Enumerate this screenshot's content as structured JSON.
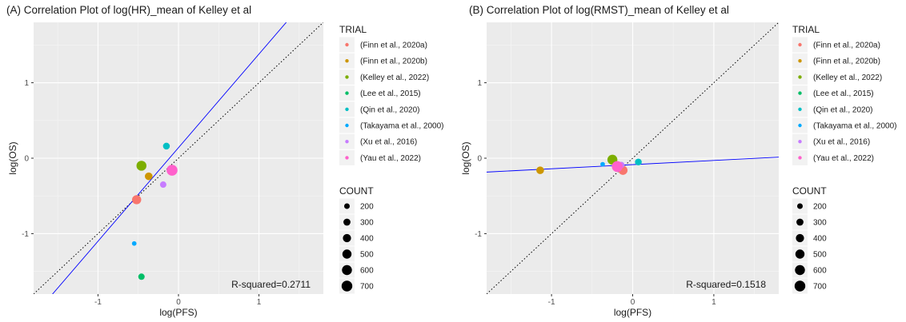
{
  "chart_data": [
    {
      "type": "scatter",
      "title": "(A) Correlation Plot of log(HR)_mean of Kelley et al",
      "xlabel": "log(PFS)",
      "ylabel": "log(OS)",
      "xlim": [
        -1.8,
        1.8
      ],
      "ylim": [
        -1.8,
        1.8
      ],
      "xticks": [
        {
          "v": -1,
          "label": "-1"
        },
        {
          "v": 0,
          "label": "0"
        },
        {
          "v": 1,
          "label": "1"
        }
      ],
      "yticks": [
        {
          "v": 1,
          "label": "1"
        },
        {
          "v": 0,
          "label": "0"
        },
        {
          "v": -1,
          "label": "-1"
        }
      ],
      "grid": true,
      "reference_line": {
        "type": "identity",
        "style": "dotted",
        "color": "#000000"
      },
      "fit_line": {
        "slope": 1.24,
        "intercept": 0.14,
        "color": "#0000ff"
      },
      "annotation": "R-squared=0.2711",
      "points": [
        {
          "trial": "(Finn et al., 2020a)",
          "x": -0.52,
          "y": -0.55,
          "count": 500
        },
        {
          "trial": "(Finn et al., 2020b)",
          "x": -0.37,
          "y": -0.24,
          "count": 350
        },
        {
          "trial": "(Kelley et al., 2022)",
          "x": -0.46,
          "y": -0.1,
          "count": 600
        },
        {
          "trial": "(Lee et al., 2015)",
          "x": -0.46,
          "y": -1.57,
          "count": 250
        },
        {
          "trial": "(Qin et al., 2020)",
          "x": -0.15,
          "y": 0.16,
          "count": 280
        },
        {
          "trial": "(Takayama et al., 2000)",
          "x": -0.55,
          "y": -1.13,
          "count": 150
        },
        {
          "trial": "(Xu et al., 2016)",
          "x": -0.19,
          "y": -0.35,
          "count": 250
        },
        {
          "trial": "(Yau et al., 2022)",
          "x": -0.08,
          "y": -0.16,
          "count": 720
        }
      ]
    },
    {
      "type": "scatter",
      "title": "(B) Correlation Plot of log(RMST)_mean of Kelley et al",
      "xlabel": "log(PFS)",
      "ylabel": "log(OS)",
      "xlim": [
        -1.8,
        1.8
      ],
      "ylim": [
        -1.8,
        1.8
      ],
      "xticks": [
        {
          "v": -1,
          "label": "-1"
        },
        {
          "v": 0,
          "label": "0"
        },
        {
          "v": 1,
          "label": "1"
        }
      ],
      "yticks": [
        {
          "v": 1,
          "label": "1"
        },
        {
          "v": 0,
          "label": "0"
        },
        {
          "v": -1,
          "label": "-1"
        }
      ],
      "grid": true,
      "reference_line": {
        "type": "identity",
        "style": "dotted",
        "color": "#000000"
      },
      "fit_line": {
        "slope": 0.055,
        "intercept": -0.085,
        "color": "#0000ff"
      },
      "annotation": "R-squared=0.1518",
      "points": [
        {
          "trial": "(Finn et al., 2020a)",
          "x": -0.12,
          "y": -0.16,
          "count": 500
        },
        {
          "trial": "(Finn et al., 2020b)",
          "x": -1.14,
          "y": -0.16,
          "count": 350
        },
        {
          "trial": "(Kelley et al., 2022)",
          "x": -0.25,
          "y": -0.02,
          "count": 600
        },
        {
          "trial": "(Lee et al., 2015)",
          "x": -0.2,
          "y": -0.09,
          "count": 250
        },
        {
          "trial": "(Qin et al., 2020)",
          "x": 0.07,
          "y": -0.05,
          "count": 280
        },
        {
          "trial": "(Takayama et al., 2000)",
          "x": -0.37,
          "y": -0.08,
          "count": 150
        },
        {
          "trial": "(Xu et al., 2016)",
          "x": -0.14,
          "y": -0.09,
          "count": 250
        },
        {
          "trial": "(Yau et al., 2022)",
          "x": -0.19,
          "y": -0.11,
          "count": 720
        }
      ]
    }
  ],
  "legend": {
    "trial_title": "TRIAL",
    "trials": [
      {
        "label": "(Finn et al., 2020a)",
        "color": "#F8766D"
      },
      {
        "label": "(Finn et al., 2020b)",
        "color": "#CD9600"
      },
      {
        "label": "(Kelley et al., 2022)",
        "color": "#7CAE00"
      },
      {
        "label": "(Lee et al., 2015)",
        "color": "#00BE67"
      },
      {
        "label": "(Qin et al., 2020)",
        "color": "#00BFC4"
      },
      {
        "label": "(Takayama et al., 2000)",
        "color": "#00A9FF"
      },
      {
        "label": "(Xu et al., 2016)",
        "color": "#C77CFF"
      },
      {
        "label": "(Yau et al., 2022)",
        "color": "#FF61CC"
      }
    ],
    "count_title": "COUNT",
    "counts": [
      {
        "label": "200",
        "value": 200
      },
      {
        "label": "300",
        "value": 300
      },
      {
        "label": "400",
        "value": 400
      },
      {
        "label": "500",
        "value": 500
      },
      {
        "label": "600",
        "value": 600
      },
      {
        "label": "700",
        "value": 700
      }
    ]
  }
}
